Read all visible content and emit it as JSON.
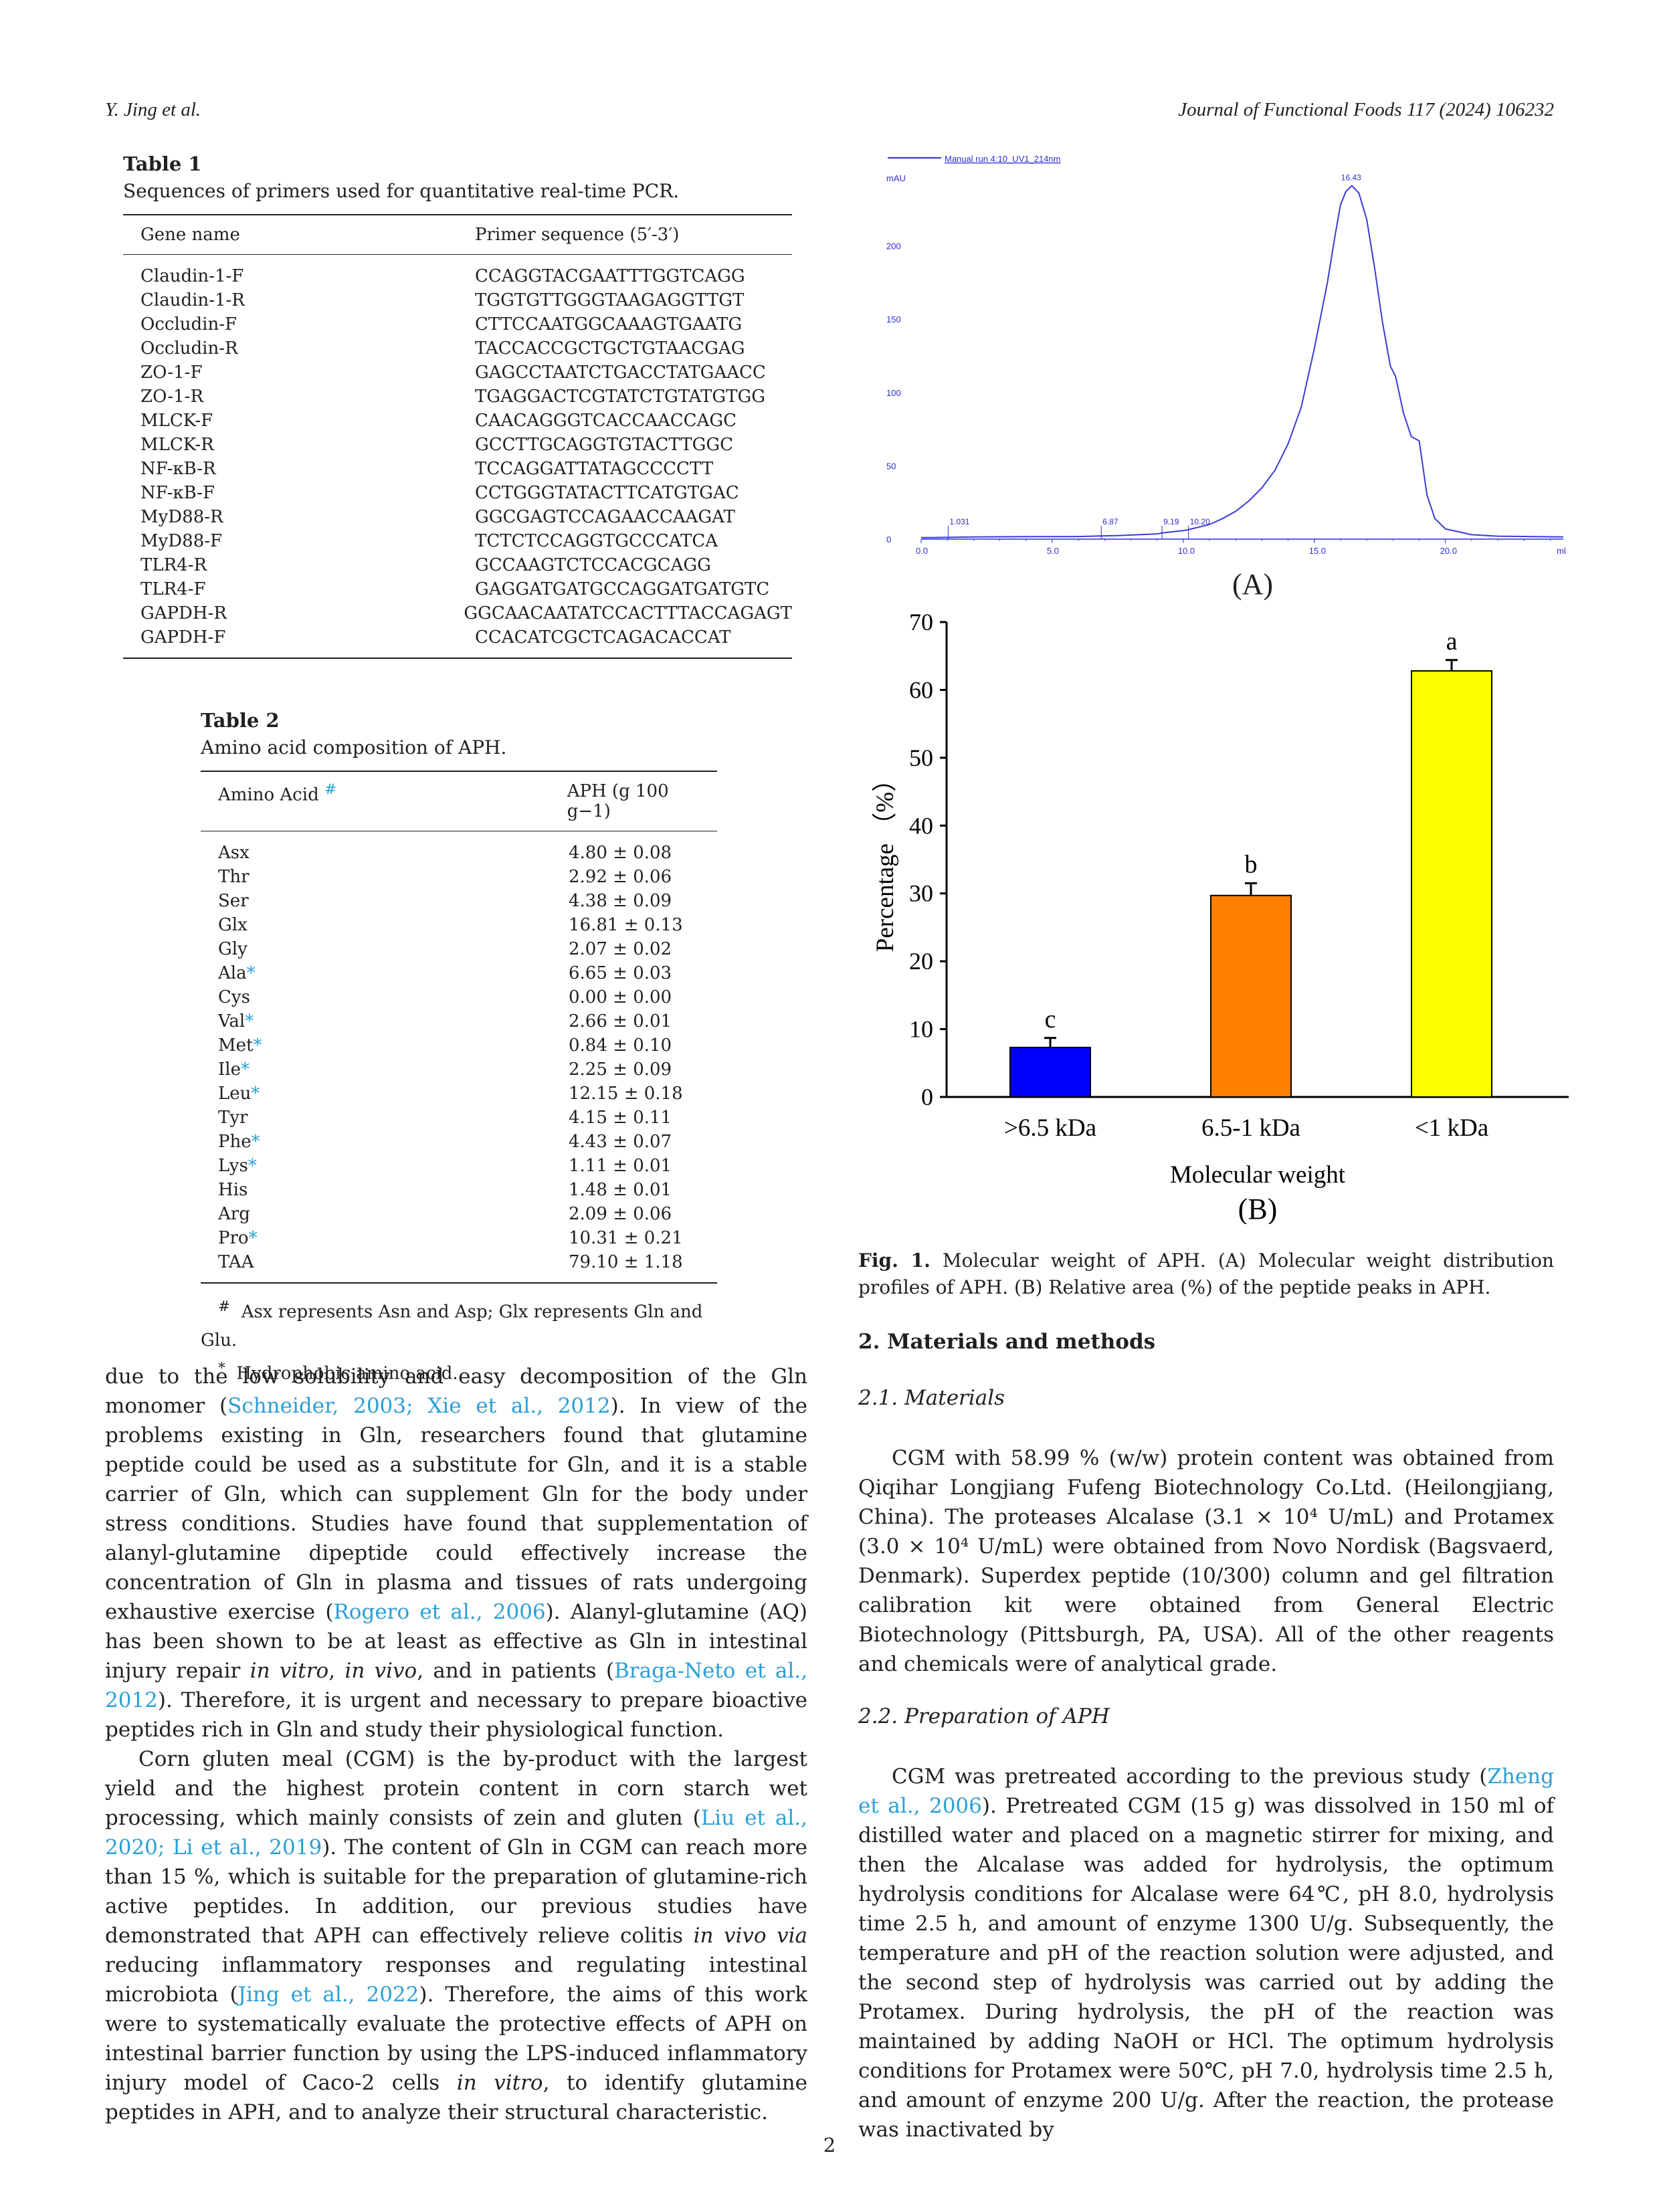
{
  "header": {
    "author": "Y. Jing et al.",
    "journal": "Journal of Functional Foods 117 (2024) 106232"
  },
  "table1": {
    "label": "Table 1",
    "caption": "Sequences of primers used for quantitative real-time PCR.",
    "col1": "Gene name",
    "col2": "Primer sequence (5′-3′)",
    "rows": [
      [
        "Claudin-1-F",
        "CCAGGTACGAATTTGGTCAGG"
      ],
      [
        "Claudin-1-R",
        "TGGTGTTGGGTAAGAGGTTGT"
      ],
      [
        "Occludin-F",
        "CTTCCAATGGCAAAGTGAATG"
      ],
      [
        "Occludin-R",
        "TACCACCGCTGCTGTAACGAG"
      ],
      [
        "ZO-1-F",
        "GAGCCTAATCTGACCTATGAACC"
      ],
      [
        "ZO-1-R",
        "TGAGGACTCGTATCTGTATGTGG"
      ],
      [
        "MLCK-F",
        "CAACAGGGTCACCAACCAGC"
      ],
      [
        "MLCK-R",
        "GCCTTGCAGGTGTACTTGGC"
      ],
      [
        "NF-κB-R",
        "TCCAGGATTATAGCCCCTT"
      ],
      [
        "NF-κB-F",
        "CCTGGGTATACTTCATGTGAC"
      ],
      [
        "MyD88-R",
        "GGCGAGTCCAGAACCAAGAT"
      ],
      [
        "MyD88-F",
        "TCTCTCCAGGTGCCCATCA"
      ],
      [
        "TLR4-R",
        "GCCAAGTCTCCACGCAGG"
      ],
      [
        "TLR4-F",
        "GAGGATGATGCCAGGATGATGTC"
      ],
      [
        "GAPDH-R",
        "GGCAACAATATCCACTTTACCAGAGT"
      ],
      [
        "GAPDH-F",
        "CCACATCGCTCAGACACCAT"
      ]
    ]
  },
  "table2": {
    "label": "Table 2",
    "caption": "Amino acid composition of APH.",
    "col1": "Amino Acid",
    "col1_mark": "#",
    "col2": "APH (g 100 g−1)",
    "rows": [
      {
        "aa": "Asx",
        "mark": "",
        "val": "4.80 ± 0.08"
      },
      {
        "aa": "Thr",
        "mark": "",
        "val": "2.92 ± 0.06"
      },
      {
        "aa": "Ser",
        "mark": "",
        "val": "4.38 ± 0.09"
      },
      {
        "aa": "Glx",
        "mark": "",
        "val": "16.81 ± 0.13"
      },
      {
        "aa": "Gly",
        "mark": "",
        "val": "2.07 ± 0.02"
      },
      {
        "aa": "Ala",
        "mark": "*",
        "val": "6.65 ± 0.03"
      },
      {
        "aa": "Cys",
        "mark": "",
        "val": "0.00 ± 0.00"
      },
      {
        "aa": "Val",
        "mark": "*",
        "val": "2.66 ± 0.01"
      },
      {
        "aa": "Met",
        "mark": "*",
        "val": "0.84 ± 0.10"
      },
      {
        "aa": "Ile",
        "mark": "*",
        "val": "2.25 ± 0.09"
      },
      {
        "aa": "Leu",
        "mark": "*",
        "val": "12.15 ± 0.18"
      },
      {
        "aa": "Tyr",
        "mark": "",
        "val": "4.15 ± 0.11"
      },
      {
        "aa": "Phe",
        "mark": "*",
        "val": "4.43 ± 0.07"
      },
      {
        "aa": "Lys",
        "mark": "*",
        "val": "1.11 ± 0.01"
      },
      {
        "aa": "His",
        "mark": "",
        "val": "1.48 ± 0.01"
      },
      {
        "aa": "Arg",
        "mark": "",
        "val": "2.09 ± 0.06"
      },
      {
        "aa": "Pro",
        "mark": "*",
        "val": "10.31 ± 0.21"
      },
      {
        "aa": "TAA",
        "mark": "",
        "val": "79.10 ± 1.18"
      }
    ],
    "footnote1_mark": "#",
    "footnote1": "Asx represents Asn and Asp; Glx represents Gln and Glu.",
    "footnote2_mark": "*",
    "footnote2": "Hydrophobic amino acid."
  },
  "left_text": {
    "p1_a": "due to the low solubility and easy decomposition of the Gln monomer (",
    "p1_cite1": "Schneider, 2003; Xie et al., 2012",
    "p1_b": "). In view of the problems existing in Gln, researchers found that glutamine peptide could be used as a substitute for Gln, and it is a stable carrier of Gln, which can supplement Gln for the body under stress conditions. Studies have found that supplementation of alanyl-glutamine dipeptide could effectively increase the concentration of Gln in plasma and tissues of rats undergoing exhaustive exercise (",
    "p1_cite2": "Rogero et al., 2006",
    "p1_c": "). Alanyl-glutamine (AQ) has been shown to be at least as effective as Gln in intestinal injury repair ",
    "p1_it1": "in vitro",
    "p1_d": ", ",
    "p1_it2": "in vivo",
    "p1_e": ", and in patients (",
    "p1_cite3": "Braga-Neto et al., 2012",
    "p1_f": "). Therefore, it is urgent and necessary to prepare bioactive peptides rich in Gln and study their physiological function.",
    "p2_a": "Corn gluten meal (CGM) is the by-product with the largest yield and the highest protein content in corn starch wet processing, which mainly consists of zein and gluten (",
    "p2_cite1": "Liu et al., 2020; Li et al., 2019",
    "p2_b": "). The content of Gln in CGM can reach more than 15 %, which is suitable for the preparation of glutamine-rich active peptides. In addition, our previous studies have demonstrated that APH can effectively relieve colitis ",
    "p2_it1": "in vivo via",
    "p2_c": " reducing inflammatory responses and regulating intestinal microbiota (",
    "p2_cite2": "Jing et al., 2022",
    "p2_d": "). Therefore, the aims of this work were to systematically evaluate the protective effects of APH on intestinal barrier function by using the LPS-induced inflammatory injury model of Caco-2 cells ",
    "p2_it2": "in vitro",
    "p2_e": ", to identify glutamine peptides in APH, and to analyze their structural characteristic."
  },
  "figure": {
    "a_header": "Manual run 4:10_UV1_214nm",
    "a_yunit": "mAU",
    "a_xunit": "ml",
    "a_panel": "(A)",
    "a_peak_labels": [
      "1.031",
      "6.87",
      "9.19",
      "10.20",
      "16.43"
    ],
    "b_panel": "(B)",
    "caption_label": "Fig. 1.",
    "caption": " Molecular weight of APH. (A) Molecular weight distribution profiles of APH. (B) Relative area (%) of the peptide peaks in APH."
  },
  "chart_data": [
    {
      "type": "line",
      "title": "Manual run 4:10_UV1_214nm",
      "xlabel": "ml",
      "ylabel": "mAU",
      "xlim": [
        0,
        24.5
      ],
      "ylim": [
        0,
        250
      ],
      "xticks": [
        "0.0",
        "5.0",
        "10.0",
        "15.0",
        "20.0"
      ],
      "yticks": [
        "0",
        "50",
        "100",
        "150",
        "200"
      ],
      "series": [
        {
          "x": [
            0,
            1.0,
            2,
            3,
            4,
            5,
            6,
            6.87,
            7.5,
            8,
            9,
            9.19,
            10,
            10.2,
            11,
            11.5,
            12,
            12.5,
            13,
            13.5,
            14,
            14.5,
            15,
            15.5,
            15.8,
            16,
            16.2,
            16.43,
            16.7,
            17,
            17.3,
            17.6,
            17.9,
            18.1,
            18.4,
            18.7,
            19,
            19.3,
            19.6,
            20,
            21,
            22,
            24.5
          ],
          "y": [
            1,
            1.2,
            1.5,
            1.6,
            1.7,
            1.7,
            1.8,
            2.2,
            2.4,
            2.8,
            3.5,
            4.2,
            5.8,
            6.5,
            10,
            14,
            19,
            26,
            35,
            47,
            65,
            90,
            130,
            175,
            208,
            228,
            237,
            241,
            236,
            218,
            185,
            148,
            118,
            111,
            86,
            70,
            67,
            30,
            14,
            7,
            3,
            2,
            1.5
          ]
        }
      ],
      "peak_labels": [
        "1.031",
        "6.87",
        "9.19",
        "10.20",
        "16.43"
      ]
    },
    {
      "type": "bar",
      "categories": [
        ">6.5 kDa",
        "6.5-1 kDa",
        "<1 kDa"
      ],
      "values": [
        7.3,
        29.7,
        62.8
      ],
      "errors": [
        1.4,
        1.8,
        1.6
      ],
      "significance": [
        "c",
        "b",
        "a"
      ],
      "colors": [
        "#0000ff",
        "#ff8000",
        "#ffff00"
      ],
      "xlabel": "Molecular weight",
      "ylabel": "Percentage （%）",
      "ylim": [
        0,
        70
      ],
      "yticks": [
        "0",
        "10",
        "20",
        "30",
        "40",
        "50",
        "60",
        "70"
      ]
    }
  ],
  "section2": {
    "title": "2. Materials and methods"
  },
  "sub21": {
    "title": "2.1. Materials",
    "text": "CGM with 58.99 % (w/w) protein content was obtained from Qiqihar Longjiang Fufeng Biotechnology Co.Ltd. (Heilongjiang, China). The proteases Alcalase (3.1 × 10⁴ U/mL) and Protamex (3.0 × 10⁴ U/mL) were obtained from Novo Nordisk (Bagsvaerd, Denmark). Superdex peptide (10/300) column and gel filtration calibration kit were obtained from General Electric Biotechnology (Pittsburgh, PA, USA). All of the other reagents and chemicals were of analytical grade."
  },
  "sub22": {
    "title": "2.2. Preparation of APH",
    "text_a": "CGM was pretreated according to the previous study (",
    "cite": "Zheng et al., 2006",
    "text_b": "). Pretreated CGM (15 g) was dissolved in 150 ml of distilled water and placed on a magnetic stirrer for mixing, and then the Alcalase was added for hydrolysis, the optimum hydrolysis conditions for Alcalase were 64℃, pH 8.0, hydrolysis time 2.5 h, and amount of enzyme 1300 U/g. Subsequently, the temperature and pH of the reaction solution were adjusted, and the second step of hydrolysis was carried out by adding the Protamex. During hydrolysis, the pH of the reaction was maintained by adding NaOH or HCl. The optimum hydrolysis conditions for Protamex were 50℃, pH 7.0, hydrolysis time 2.5 h, and amount of enzyme 200 U/g. After the reaction, the protease was inactivated by"
  },
  "page_number": "2"
}
